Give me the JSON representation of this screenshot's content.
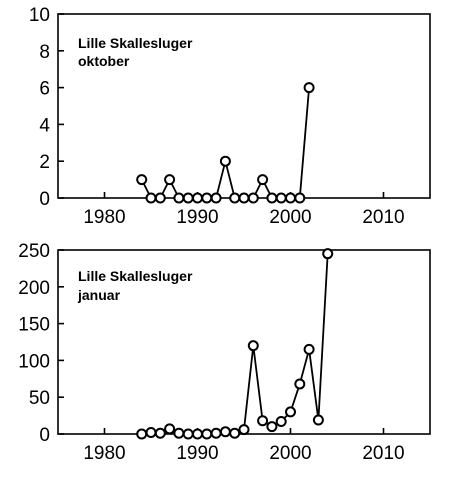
{
  "chart_data": [
    {
      "type": "line",
      "title": "Lille Skallesluger",
      "subtitle": "oktober",
      "xlim": [
        1975,
        2015
      ],
      "ylim": [
        0,
        10
      ],
      "x_ticks": [
        1980,
        1990,
        2000,
        2010
      ],
      "y_ticks": [
        0,
        2,
        4,
        6,
        8,
        10
      ],
      "grid": false,
      "x": [
        1984,
        1985,
        1986,
        1987,
        1988,
        1989,
        1990,
        1991,
        1992,
        1993,
        1994,
        1995,
        1996,
        1997,
        1998,
        1999,
        2000,
        2001,
        2002
      ],
      "y": [
        1,
        0,
        0,
        1,
        0,
        0,
        0,
        0,
        0,
        2,
        0,
        0,
        0,
        1,
        0,
        0,
        0,
        0,
        6
      ]
    },
    {
      "type": "line",
      "title": "Lille Skallesluger",
      "subtitle": "januar",
      "xlim": [
        1975,
        2015
      ],
      "ylim": [
        0,
        250
      ],
      "x_ticks": [
        1980,
        1990,
        2000,
        2010
      ],
      "y_ticks": [
        0,
        50,
        100,
        150,
        200,
        250
      ],
      "grid": false,
      "x": [
        1984,
        1985,
        1986,
        1987,
        1988,
        1989,
        1990,
        1991,
        1992,
        1993,
        1994,
        1995,
        1996,
        1997,
        1998,
        1999,
        2000,
        2001,
        2002,
        2003,
        2004
      ],
      "y": [
        0,
        2,
        1,
        7,
        1,
        0,
        0,
        0,
        1,
        3,
        1,
        6,
        120,
        18,
        10,
        17,
        30,
        68,
        115,
        19,
        245
      ]
    }
  ]
}
